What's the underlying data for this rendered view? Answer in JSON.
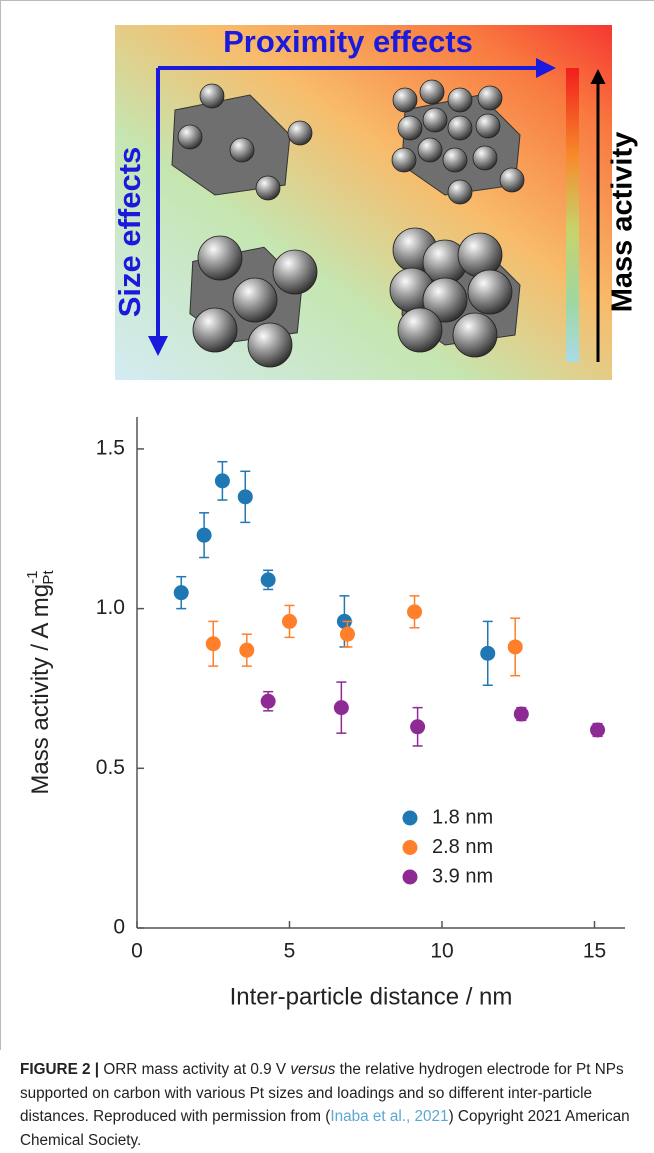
{
  "diagram": {
    "top_label": "Proximity effects",
    "left_label": "Size effects",
    "right_label": "Mass activity"
  },
  "chart_data": {
    "type": "scatter",
    "x_label": "Inter-particle distance / nm",
    "y_label": {
      "text": "Mass activity / A mg",
      "sup": "-1",
      "sub": "Pt"
    },
    "xlim": [
      0,
      16
    ],
    "xticks": [
      0,
      5,
      10,
      15
    ],
    "ylim": [
      0,
      1.6
    ],
    "yticks": [
      0,
      0.5,
      {
        "value": 1,
        "label": "1.0"
      },
      1.5
    ],
    "legend": "lower right",
    "series": [
      {
        "name": "1.8 nm",
        "color": "#1f77b4",
        "x": [
          1.45,
          2.2,
          2.8,
          3.55,
          4.3,
          6.8,
          11.5
        ],
        "values": [
          1.05,
          1.23,
          1.4,
          1.35,
          1.09,
          0.96,
          0.86
        ],
        "errors": [
          0.05,
          0.07,
          0.06,
          0.08,
          0.03,
          0.08,
          0.1
        ]
      },
      {
        "name": "2.8 nm",
        "color": "#ff7f2a",
        "x": [
          2.5,
          3.6,
          5.0,
          6.9,
          9.1,
          12.4
        ],
        "values": [
          0.89,
          0.87,
          0.96,
          0.92,
          0.99,
          0.88
        ],
        "errors": [
          0.07,
          0.05,
          0.05,
          0.04,
          0.05,
          0.09
        ]
      },
      {
        "name": "3.9 nm",
        "color": "#8e2a94",
        "x": [
          4.3,
          6.7,
          9.2,
          12.6,
          15.1
        ],
        "values": [
          0.71,
          0.69,
          0.63,
          0.67,
          0.62
        ],
        "errors": [
          0.03,
          0.08,
          0.06,
          0.02,
          0.02
        ]
      }
    ]
  },
  "caption": {
    "label": "FIGURE 2 |",
    "text1": " ORR mass activity at 0.9 V ",
    "italic": "versus",
    "text2": " the relative hydrogen electrode for Pt NPs supported on carbon with various Pt sizes and loadings and so different inter-particle distances. Reproduced with permission from (",
    "link": "Inaba et al., 2021",
    "text3": ") Copyright 2021 American Chemical Society."
  }
}
